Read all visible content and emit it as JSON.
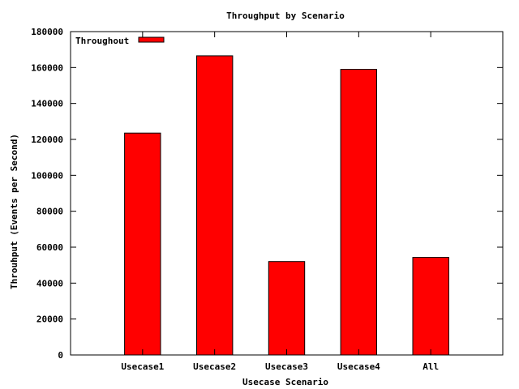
{
  "chart_data": {
    "type": "bar",
    "title": "Throughput by Scenario",
    "xlabel": "Usecase Scenario",
    "ylabel": "Throuhput (Events per Second)",
    "categories": [
      "Usecase1",
      "Usecase2",
      "Usecase3",
      "Usecase4",
      "All"
    ],
    "series": [
      {
        "name": "Throughout",
        "values": [
          123500,
          166500,
          52000,
          159000,
          54300
        ],
        "color": "#ff0000"
      }
    ],
    "ylim": [
      0,
      180000
    ],
    "yticks": [
      0,
      20000,
      40000,
      60000,
      80000,
      100000,
      120000,
      140000,
      160000,
      180000
    ],
    "grid": false,
    "legend_position": "top-left"
  }
}
